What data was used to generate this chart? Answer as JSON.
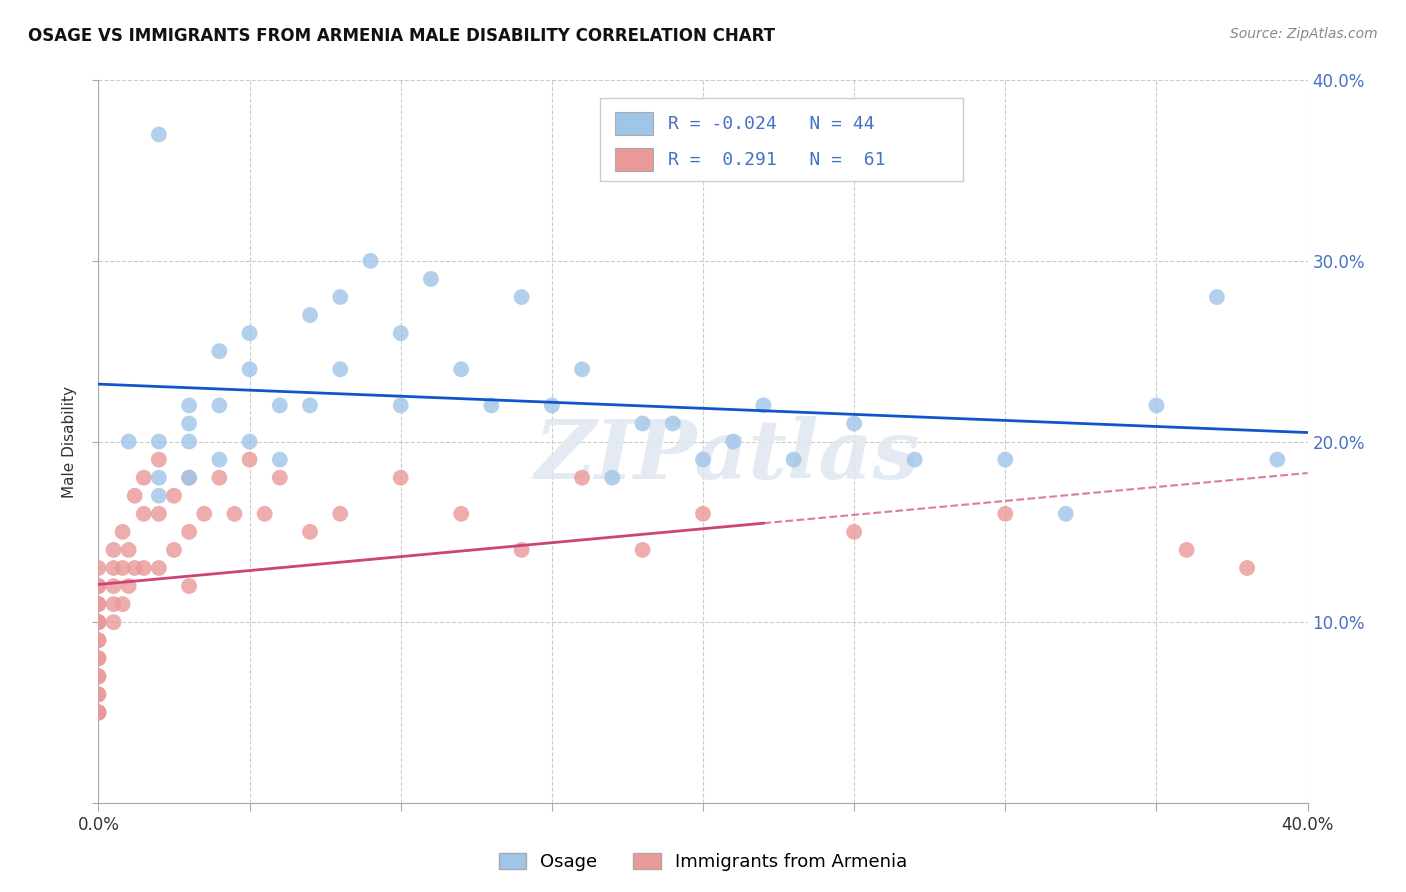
{
  "title": "OSAGE VS IMMIGRANTS FROM ARMENIA MALE DISABILITY CORRELATION CHART",
  "source": "Source: ZipAtlas.com",
  "ylabel": "Male Disability",
  "x_min": 0.0,
  "x_max": 0.4,
  "y_min": 0.0,
  "y_max": 0.4,
  "x_ticks": [
    0.0,
    0.05,
    0.1,
    0.15,
    0.2,
    0.25,
    0.3,
    0.35,
    0.4
  ],
  "y_ticks": [
    0.0,
    0.1,
    0.2,
    0.3,
    0.4
  ],
  "R1": -0.024,
  "N1": 44,
  "R2": 0.291,
  "N2": 61,
  "color_blue": "#9fc5e8",
  "color_pink": "#ea9999",
  "line_color_blue": "#1155cc",
  "line_color_pink": "#cc4477",
  "watermark": "ZIPatlas",
  "legend_label1": "Osage",
  "legend_label2": "Immigrants from Armenia",
  "osage_x": [
    0.01,
    0.02,
    0.02,
    0.02,
    0.02,
    0.03,
    0.03,
    0.03,
    0.03,
    0.04,
    0.04,
    0.04,
    0.05,
    0.05,
    0.05,
    0.06,
    0.06,
    0.07,
    0.07,
    0.08,
    0.08,
    0.09,
    0.1,
    0.1,
    0.11,
    0.12,
    0.13,
    0.14,
    0.15,
    0.16,
    0.17,
    0.18,
    0.19,
    0.2,
    0.21,
    0.22,
    0.23,
    0.25,
    0.27,
    0.3,
    0.32,
    0.35,
    0.37,
    0.39
  ],
  "osage_y": [
    0.2,
    0.37,
    0.2,
    0.18,
    0.17,
    0.22,
    0.21,
    0.2,
    0.18,
    0.25,
    0.22,
    0.19,
    0.26,
    0.24,
    0.2,
    0.22,
    0.19,
    0.27,
    0.22,
    0.28,
    0.24,
    0.3,
    0.26,
    0.22,
    0.29,
    0.24,
    0.22,
    0.28,
    0.22,
    0.24,
    0.18,
    0.21,
    0.21,
    0.19,
    0.2,
    0.22,
    0.19,
    0.21,
    0.19,
    0.19,
    0.16,
    0.22,
    0.28,
    0.19
  ],
  "armenia_x": [
    0.0,
    0.0,
    0.0,
    0.0,
    0.0,
    0.0,
    0.0,
    0.0,
    0.0,
    0.0,
    0.0,
    0.0,
    0.0,
    0.0,
    0.0,
    0.0,
    0.0,
    0.0,
    0.0,
    0.0,
    0.005,
    0.005,
    0.005,
    0.005,
    0.005,
    0.008,
    0.008,
    0.008,
    0.01,
    0.01,
    0.012,
    0.012,
    0.015,
    0.015,
    0.015,
    0.02,
    0.02,
    0.02,
    0.025,
    0.025,
    0.03,
    0.03,
    0.03,
    0.035,
    0.04,
    0.045,
    0.05,
    0.055,
    0.06,
    0.07,
    0.08,
    0.1,
    0.12,
    0.14,
    0.16,
    0.18,
    0.2,
    0.25,
    0.3,
    0.36,
    0.38
  ],
  "armenia_y": [
    0.13,
    0.12,
    0.12,
    0.11,
    0.11,
    0.1,
    0.1,
    0.1,
    0.09,
    0.09,
    0.08,
    0.08,
    0.07,
    0.07,
    0.06,
    0.06,
    0.05,
    0.05,
    0.05,
    0.05,
    0.14,
    0.13,
    0.12,
    0.11,
    0.1,
    0.15,
    0.13,
    0.11,
    0.14,
    0.12,
    0.17,
    0.13,
    0.18,
    0.16,
    0.13,
    0.19,
    0.16,
    0.13,
    0.17,
    0.14,
    0.18,
    0.15,
    0.12,
    0.16,
    0.18,
    0.16,
    0.19,
    0.16,
    0.18,
    0.15,
    0.16,
    0.18,
    0.16,
    0.14,
    0.18,
    0.14,
    0.16,
    0.15,
    0.16,
    0.14,
    0.13
  ]
}
